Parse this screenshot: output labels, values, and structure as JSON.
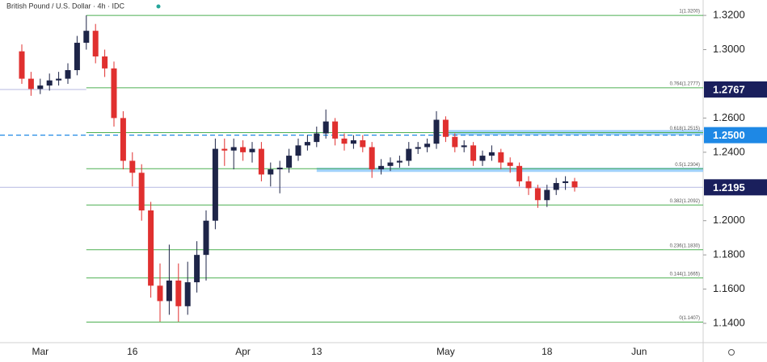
{
  "chart_data": {
    "type": "candlestick",
    "title": "British Pound / U.S. Dollar · 4h · IDC",
    "categories": [
      null,
      null,
      "Mar",
      null,
      null,
      null,
      null,
      null,
      null,
      null,
      null,
      null,
      "16",
      null,
      null,
      null,
      null,
      null,
      null,
      null,
      null,
      null,
      null,
      null,
      "Apr",
      null,
      null,
      null,
      null,
      null,
      null,
      null,
      "13",
      null,
      null,
      null,
      null,
      null,
      null,
      null,
      null,
      null,
      null,
      null,
      null,
      null,
      "May",
      null,
      null,
      null,
      null,
      null,
      null,
      null,
      null,
      null,
      null,
      "18",
      null,
      null,
      null,
      null,
      null,
      null,
      null,
      null,
      null,
      "Jun",
      null,
      null,
      null,
      null,
      null,
      null,
      null
    ],
    "open": [
      1.299,
      1.283,
      1.277,
      1.279,
      1.282,
      1.283,
      1.288,
      1.304,
      1.311,
      1.296,
      1.289,
      1.26,
      1.235,
      1.228,
      1.206,
      1.162,
      1.153,
      1.165,
      1.15,
      1.164,
      1.18,
      1.2,
      1.242,
      1.241,
      1.243,
      1.24,
      1.242,
      1.227,
      1.23,
      1.231,
      1.238,
      1.244,
      1.246,
      1.251,
      1.258,
      1.248,
      1.245,
      1.247,
      1.243,
      1.23,
      1.232,
      1.234,
      1.235,
      1.242,
      1.243,
      1.245,
      1.259,
      1.249,
      1.243,
      1.244,
      1.235,
      1.238,
      1.24,
      1.234,
      1.232,
      1.223,
      1.219,
      1.212,
      1.218,
      1.222,
      1.223,
      null,
      null,
      null,
      null,
      null,
      null,
      null,
      null,
      null,
      null,
      null,
      null,
      null,
      null
    ],
    "high": [
      1.303,
      1.287,
      1.283,
      1.286,
      1.287,
      1.292,
      1.308,
      1.32,
      1.315,
      1.3,
      1.293,
      1.264,
      1.24,
      1.233,
      1.211,
      1.175,
      1.186,
      1.175,
      1.176,
      1.188,
      1.206,
      1.248,
      1.248,
      1.248,
      1.247,
      1.246,
      1.246,
      1.234,
      1.235,
      1.242,
      1.248,
      1.25,
      1.255,
      1.265,
      1.26,
      1.251,
      1.25,
      1.25,
      1.246,
      1.236,
      1.237,
      1.238,
      1.246,
      1.246,
      1.248,
      1.264,
      1.261,
      1.251,
      1.247,
      1.246,
      1.241,
      1.244,
      1.242,
      1.237,
      1.234,
      1.226,
      1.221,
      1.221,
      1.225,
      1.226,
      1.225,
      null,
      null,
      null,
      null,
      null,
      null,
      null,
      null,
      null,
      null,
      null,
      null,
      null,
      null
    ],
    "low": [
      1.28,
      1.273,
      1.274,
      1.276,
      1.279,
      1.28,
      1.285,
      1.3,
      1.292,
      1.284,
      1.255,
      1.23,
      1.22,
      1.2,
      1.155,
      1.141,
      1.145,
      1.141,
      1.145,
      1.158,
      1.165,
      1.195,
      1.232,
      1.23,
      1.235,
      1.234,
      1.223,
      1.22,
      1.216,
      1.228,
      1.235,
      1.241,
      1.243,
      1.248,
      1.244,
      1.241,
      1.242,
      1.24,
      1.225,
      1.227,
      1.229,
      1.231,
      1.232,
      1.239,
      1.24,
      1.242,
      1.246,
      1.24,
      1.24,
      1.232,
      1.232,
      1.235,
      1.23,
      1.228,
      1.22,
      1.215,
      1.2075,
      1.208,
      1.215,
      1.218,
      1.217,
      null,
      null,
      null,
      null,
      null,
      null,
      null,
      null,
      null,
      null,
      null,
      null,
      null,
      null
    ],
    "close": [
      1.283,
      1.277,
      1.279,
      1.282,
      1.283,
      1.288,
      1.304,
      1.311,
      1.296,
      1.289,
      1.26,
      1.235,
      1.228,
      1.206,
      1.162,
      1.153,
      1.165,
      1.15,
      1.164,
      1.18,
      1.2,
      1.242,
      1.241,
      1.243,
      1.24,
      1.242,
      1.227,
      1.23,
      1.231,
      1.238,
      1.244,
      1.246,
      1.251,
      1.258,
      1.248,
      1.245,
      1.247,
      1.243,
      1.23,
      1.232,
      1.234,
      1.235,
      1.242,
      1.243,
      1.245,
      1.259,
      1.249,
      1.243,
      1.244,
      1.235,
      1.238,
      1.24,
      1.234,
      1.232,
      1.223,
      1.219,
      1.212,
      1.218,
      1.222,
      1.223,
      1.2195,
      null,
      null,
      null,
      null,
      null,
      null,
      null,
      null,
      null,
      null,
      null,
      null,
      null,
      null
    ],
    "up_color": "#1e2548",
    "down_color": "#e0302f",
    "ylim": [
      1.1287,
      1.329
    ],
    "yticks": [
      {
        "value": 1.32,
        "label": "1.3200"
      },
      {
        "value": 1.3,
        "label": "1.3000"
      },
      {
        "value": 1.26,
        "label": "1.2600"
      },
      {
        "value": 1.24,
        "label": "1.2400"
      },
      {
        "value": 1.2,
        "label": "1.2000"
      },
      {
        "value": 1.18,
        "label": "1.1800"
      },
      {
        "value": 1.16,
        "label": "1.1600"
      },
      {
        "value": 1.14,
        "label": "1.1400"
      }
    ],
    "fib_color": "#4caf50",
    "fib_levels": [
      {
        "value": 1.32,
        "label": "1(1.3200)"
      },
      {
        "value": 1.2777,
        "label": "0.764(1.2777)"
      },
      {
        "value": 1.2515,
        "label": "0.618(1.2515)"
      },
      {
        "value": 1.2304,
        "label": "0.5(1.2304)"
      },
      {
        "value": 1.2092,
        "label": "0.382(1.2092)"
      },
      {
        "value": 1.183,
        "label": "0.236(1.1830)"
      },
      {
        "value": 1.1665,
        "label": "0.144(1.1665)"
      },
      {
        "value": 1.1407,
        "label": "0(1.1407)"
      }
    ],
    "fib_start": 7,
    "zones": [
      {
        "start": 46,
        "low": 1.25,
        "high": 1.253,
        "color": "#90caf9"
      },
      {
        "start": 32,
        "low": 1.2285,
        "high": 1.231,
        "color": "#90caf9"
      }
    ],
    "price_labels": [
      {
        "value": 1.2767,
        "label": "1.2767",
        "color": "#1a1f5c",
        "line": "#c5c8e8",
        "dashed": false,
        "start": 0,
        "end": 7
      },
      {
        "value": 1.25,
        "label": "1.2500",
        "color": "#1e88e5",
        "line": "#1e88e5",
        "dashed": true,
        "start": 0,
        "end": 74
      },
      {
        "value": 1.2195,
        "label": "1.2195",
        "color": "#1a1f5c",
        "line": "#c5c8e8",
        "dashed": false,
        "start": 0,
        "end": 74
      }
    ]
  }
}
